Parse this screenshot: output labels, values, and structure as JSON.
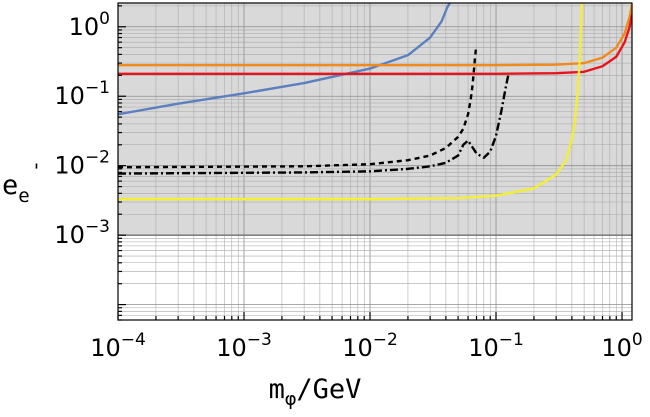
{
  "chart_data": {
    "type": "line",
    "title": "",
    "xlabel": {
      "main": "m",
      "sub": "φ",
      "suffix": "/GeV"
    },
    "ylabel": {
      "main": "e",
      "sub": "e",
      "sup": "'"
    },
    "x_scale": "log",
    "y_scale": "log",
    "xlim": [
      0.0001,
      1.2
    ],
    "ylim": [
      6e-05,
      2.2
    ],
    "grid": true,
    "x_ticks": [
      {
        "value": 0.0001,
        "base": "10",
        "exp": "−4"
      },
      {
        "value": 0.001,
        "base": "10",
        "exp": "−3"
      },
      {
        "value": 0.01,
        "base": "10",
        "exp": "−2"
      },
      {
        "value": 0.1,
        "base": "10",
        "exp": "−1"
      },
      {
        "value": 1,
        "base": "10",
        "exp": "0"
      }
    ],
    "y_ticks": [
      {
        "value": 0.001,
        "base": "10",
        "exp": "−3"
      },
      {
        "value": 0.01,
        "base": "10",
        "exp": "−2"
      },
      {
        "value": 0.1,
        "base": "10",
        "exp": "−1"
      },
      {
        "value": 1,
        "base": "10",
        "exp": "0"
      }
    ],
    "shaded_region": {
      "y_from": 0.001,
      "y_to": 2.2,
      "color": "#d9d9d9",
      "boundary_color": "#707070"
    },
    "series": [
      {
        "color": "#5b7fbf",
        "dash": "solid",
        "x": [
          0.0001,
          0.0003,
          0.001,
          0.003,
          0.01,
          0.02,
          0.03,
          0.037,
          0.041,
          0.043
        ],
        "y": [
          0.055,
          0.078,
          0.11,
          0.155,
          0.25,
          0.39,
          0.7,
          1.2,
          1.9,
          2.2
        ]
      },
      {
        "color": "#f08a1c",
        "dash": "solid",
        "x": [
          0.0001,
          0.01,
          0.1,
          0.3,
          0.5,
          0.7,
          0.9,
          1.05,
          1.15,
          1.2
        ],
        "y": [
          0.28,
          0.28,
          0.28,
          0.285,
          0.3,
          0.36,
          0.5,
          0.8,
          1.4,
          2.1
        ]
      },
      {
        "color": "#e8141c",
        "dash": "solid",
        "x": [
          0.0001,
          0.01,
          0.1,
          0.3,
          0.5,
          0.7,
          0.9,
          1.05,
          1.15,
          1.2
        ],
        "y": [
          0.21,
          0.21,
          0.21,
          0.215,
          0.225,
          0.27,
          0.37,
          0.6,
          1.0,
          1.5
        ]
      },
      {
        "color": "#f4ee34",
        "dash": "solid",
        "x": [
          0.0001,
          0.01,
          0.05,
          0.1,
          0.2,
          0.3,
          0.36,
          0.4,
          0.42,
          0.44,
          0.46,
          0.47,
          0.48
        ],
        "y": [
          0.0033,
          0.0033,
          0.0034,
          0.0037,
          0.0047,
          0.0075,
          0.012,
          0.024,
          0.04,
          0.09,
          0.3,
          0.8,
          2.2
        ]
      },
      {
        "color": "#000000",
        "dash": "5,4",
        "x": [
          0.0001,
          0.003,
          0.01,
          0.02,
          0.03,
          0.04,
          0.05,
          0.055,
          0.06,
          0.063,
          0.065,
          0.067,
          0.068,
          0.069,
          0.07
        ],
        "y": [
          0.0095,
          0.0098,
          0.0105,
          0.012,
          0.014,
          0.018,
          0.026,
          0.034,
          0.055,
          0.09,
          0.14,
          0.25,
          0.35,
          0.45,
          0.53
        ]
      },
      {
        "color": "#000000",
        "dash": "8,3,2,3",
        "x": [
          0.0001,
          0.003,
          0.01,
          0.02,
          0.03,
          0.04,
          0.05,
          0.055,
          0.06,
          0.07,
          0.08,
          0.09,
          0.1,
          0.11,
          0.12,
          0.125
        ],
        "y": [
          0.0077,
          0.008,
          0.0083,
          0.009,
          0.0098,
          0.011,
          0.014,
          0.02,
          0.023,
          0.015,
          0.013,
          0.016,
          0.027,
          0.06,
          0.14,
          0.2
        ]
      }
    ]
  }
}
